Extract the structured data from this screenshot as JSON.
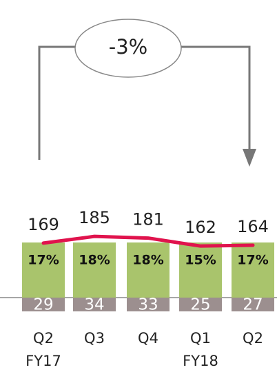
{
  "chart_data": {
    "type": "bar",
    "annotation": "-3%",
    "categories": [
      "Q2",
      "Q3",
      "Q4",
      "Q1",
      "Q2"
    ],
    "sub_categories": [
      "FY17",
      null,
      null,
      "FY18",
      null
    ],
    "ylim": [
      0,
      400
    ],
    "series": [
      {
        "color": "#9c8f8f",
        "values": [
          29,
          34,
          33,
          25,
          27
        ]
      },
      {
        "color": "#a9c46c",
        "values": [
          17,
          18,
          18,
          15,
          17
        ],
        "value_labels": [
          "17%",
          "18%",
          "18%",
          "15%",
          "17%"
        ]
      },
      {
        "type": "line",
        "color": "#e0134d",
        "values": [
          169,
          185,
          181,
          162,
          164
        ]
      }
    ]
  }
}
